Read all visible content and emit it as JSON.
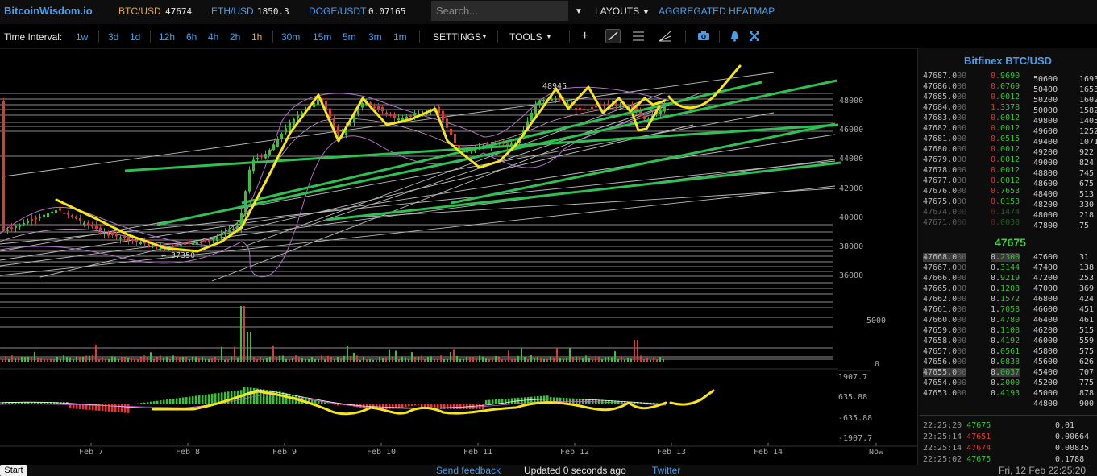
{
  "header": {
    "logo": "BitcoinWisdom.io",
    "tickers": [
      {
        "pair": "BTC/USD",
        "price": "47674",
        "pair_color": "#e7a53b"
      },
      {
        "pair": "ETH/USD",
        "price": "1850.3"
      },
      {
        "pair": "DOGE/USDT",
        "price": "0.07165"
      }
    ],
    "search_placeholder": "Search...",
    "layouts_label": "LAYOUTS",
    "heatmap_label": "AGGREGATED HEATMAP"
  },
  "toolbar": {
    "interval_label": "Time Interval:",
    "intervals": [
      "1w",
      "3d",
      "1d",
      "12h",
      "6h",
      "4h",
      "2h",
      "1h",
      "30m",
      "15m",
      "5m",
      "3m",
      "1m"
    ],
    "active_interval": "1h",
    "settings_label": "SETTINGS",
    "tools_label": "TOOLS",
    "icons": [
      "crosshair-icon",
      "line-draw-icon",
      "fib-icon",
      "ray-tool-icon",
      "camera-icon",
      "bell-icon",
      "fullscreen-icon"
    ]
  },
  "chart_data": {
    "type": "line",
    "symbol": "BTC/USD",
    "price_axis": [
      "48000",
      "46000",
      "44000",
      "42000",
      "40000",
      "38000",
      "36000"
    ],
    "volume_axis": [
      "5000",
      "0"
    ],
    "macd_axis": [
      "1907.7",
      "635.88",
      "-635.88",
      "-1907.7"
    ],
    "x_labels": [
      "Feb 7",
      "Feb 8",
      "Feb 9",
      "Feb 10",
      "Feb 11",
      "Feb 12",
      "Feb 13",
      "Feb 14",
      "Now"
    ],
    "annotations": [
      "48945",
      "← 37350"
    ],
    "colors": {
      "up": "#3dbd3d",
      "down": "#d83a3a",
      "trendline": "#2fbf52",
      "drawing": "#f5e51c"
    }
  },
  "orderbook": {
    "title": "Bitfinex BTC/USD",
    "asks": [
      {
        "price": "47687.0",
        "dec": "00",
        "amount": "0.9690"
      },
      {
        "price": "47686.0",
        "dec": "00",
        "amount": "0.0769"
      },
      {
        "price": "47685.0",
        "dec": "00",
        "amount": "0.0012"
      },
      {
        "price": "47684.0",
        "dec": "00",
        "amount": "1.3378"
      },
      {
        "price": "47683.0",
        "dec": "00",
        "amount": "0.0012"
      },
      {
        "price": "47682.0",
        "dec": "00",
        "amount": "0.0012"
      },
      {
        "price": "47681.0",
        "dec": "00",
        "amount": "0.0515"
      },
      {
        "price": "47680.0",
        "dec": "00",
        "amount": "0.0012"
      },
      {
        "price": "47679.0",
        "dec": "00",
        "amount": "0.0012"
      },
      {
        "price": "47678.0",
        "dec": "00",
        "amount": "0.0012"
      },
      {
        "price": "47677.0",
        "dec": "00",
        "amount": "0.0012"
      },
      {
        "price": "47676.0",
        "dec": "00",
        "amount": "0.7653"
      },
      {
        "price": "47675.0",
        "dec": "00",
        "amount": "0.0153"
      },
      {
        "price": "47674.0",
        "dec": "00",
        "amount": "0.1474"
      },
      {
        "price": "47671.0",
        "dec": "00",
        "amount": "0.0038"
      }
    ],
    "ask_depth": [
      {
        "p": "50600",
        "v": "1693"
      },
      {
        "p": "50400",
        "v": "1653"
      },
      {
        "p": "50200",
        "v": "1602"
      },
      {
        "p": "50000",
        "v": "1582"
      },
      {
        "p": "49800",
        "v": "1405"
      },
      {
        "p": "49600",
        "v": "1252"
      },
      {
        "p": "49400",
        "v": "1071"
      },
      {
        "p": "49200",
        "v": "922"
      },
      {
        "p": "49000",
        "v": "824"
      },
      {
        "p": "48800",
        "v": "745"
      },
      {
        "p": "48600",
        "v": "675"
      },
      {
        "p": "48400",
        "v": "513"
      },
      {
        "p": "48200",
        "v": "330"
      },
      {
        "p": "48000",
        "v": "218"
      },
      {
        "p": "47800",
        "v": "75"
      }
    ],
    "mid_price": "47675",
    "bids": [
      {
        "price": "47668.0",
        "dec": "00",
        "amount": "0.2300"
      },
      {
        "price": "47667.0",
        "dec": "00",
        "amount": "0.3144"
      },
      {
        "price": "47666.0",
        "dec": "00",
        "amount": "0.9219"
      },
      {
        "price": "47665.0",
        "dec": "00",
        "amount": "0.1208"
      },
      {
        "price": "47662.0",
        "dec": "00",
        "amount": "0.1572"
      },
      {
        "price": "47661.0",
        "dec": "00",
        "amount": "1.7058"
      },
      {
        "price": "47660.0",
        "dec": "00",
        "amount": "0.4780"
      },
      {
        "price": "47659.0",
        "dec": "00",
        "amount": "0.1108"
      },
      {
        "price": "47658.0",
        "dec": "00",
        "amount": "0.4192"
      },
      {
        "price": "47657.0",
        "dec": "00",
        "amount": "0.0561"
      },
      {
        "price": "47656.0",
        "dec": "00",
        "amount": "0.0838"
      },
      {
        "price": "47655.0",
        "dec": "00",
        "amount": "0.0037"
      },
      {
        "price": "47654.0",
        "dec": "00",
        "amount": "0.2000"
      },
      {
        "price": "47653.0",
        "dec": "00",
        "amount": "0.4193"
      }
    ],
    "bid_depth": [
      {
        "p": "47600",
        "v": "31"
      },
      {
        "p": "47400",
        "v": "138"
      },
      {
        "p": "47200",
        "v": "253"
      },
      {
        "p": "47000",
        "v": "369"
      },
      {
        "p": "46800",
        "v": "424"
      },
      {
        "p": "46600",
        "v": "451"
      },
      {
        "p": "46400",
        "v": "461"
      },
      {
        "p": "46200",
        "v": "515"
      },
      {
        "p": "46000",
        "v": "559"
      },
      {
        "p": "45800",
        "v": "575"
      },
      {
        "p": "45600",
        "v": "626"
      },
      {
        "p": "45400",
        "v": "707"
      },
      {
        "p": "45200",
        "v": "775"
      },
      {
        "p": "45000",
        "v": "878"
      },
      {
        "p": "44800",
        "v": "900"
      }
    ],
    "trades": [
      {
        "time": "22:25:20",
        "price": "47675",
        "amount": "0.01",
        "side": "buy"
      },
      {
        "time": "22:25:14",
        "price": "47651",
        "amount": "0.00664",
        "side": "sell"
      },
      {
        "time": "22:25:14",
        "price": "47674",
        "amount": "0.00835",
        "side": "sell"
      },
      {
        "time": "22:25:02",
        "price": "47675",
        "amount": "0.1788",
        "side": "buy"
      }
    ]
  },
  "footer": {
    "start_label": "Start",
    "feedback_label": "Send feedback",
    "updated_label": "Updated 0 seconds ago",
    "twitter_label": "Twitter",
    "datetime": "Fri, 12 Feb 22:25:20"
  }
}
